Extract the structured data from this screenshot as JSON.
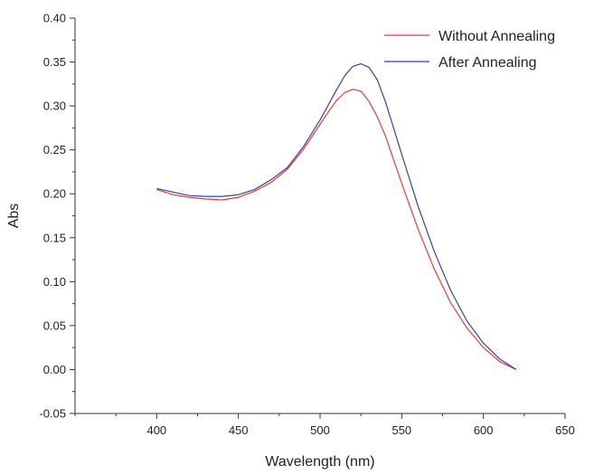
{
  "chart_data": {
    "type": "line",
    "xlabel": "Wavelength (nm)",
    "ylabel": "Abs",
    "xlim": [
      350,
      650
    ],
    "ylim": [
      -0.05,
      0.4
    ],
    "x_ticks": [
      400,
      450,
      500,
      550,
      600,
      650
    ],
    "y_ticks": [
      -0.05,
      0.0,
      0.05,
      0.1,
      0.15,
      0.2,
      0.25,
      0.3,
      0.35,
      0.4
    ],
    "x_tick_labels": [
      "400",
      "450",
      "500",
      "550",
      "600",
      "650"
    ],
    "y_tick_labels": [
      "-0.05",
      "0.00",
      "0.05",
      "0.10",
      "0.15",
      "0.20",
      "0.25",
      "0.30",
      "0.35",
      "0.40"
    ],
    "grid": false,
    "legend": "top-right",
    "series": [
      {
        "name": "Without Annealing",
        "color": "#e8393a",
        "x": [
          400,
          410,
          420,
          430,
          440,
          450,
          460,
          470,
          480,
          490,
          500,
          505,
          510,
          515,
          520,
          525,
          530,
          535,
          540,
          550,
          560,
          570,
          580,
          590,
          600,
          610,
          620
        ],
        "y": [
          0.205,
          0.199,
          0.196,
          0.194,
          0.193,
          0.196,
          0.203,
          0.213,
          0.228,
          0.251,
          0.279,
          0.293,
          0.306,
          0.315,
          0.319,
          0.317,
          0.305,
          0.288,
          0.266,
          0.212,
          0.16,
          0.114,
          0.076,
          0.047,
          0.025,
          0.009,
          0.0
        ]
      },
      {
        "name": "After Annealing",
        "color": "#3a3ea8",
        "x": [
          400,
          410,
          420,
          430,
          440,
          450,
          460,
          470,
          480,
          490,
          500,
          510,
          515,
          520,
          525,
          530,
          535,
          540,
          550,
          560,
          570,
          580,
          590,
          600,
          610,
          620
        ],
        "y": [
          0.206,
          0.202,
          0.198,
          0.197,
          0.197,
          0.199,
          0.205,
          0.216,
          0.23,
          0.254,
          0.284,
          0.318,
          0.334,
          0.345,
          0.348,
          0.344,
          0.33,
          0.305,
          0.245,
          0.186,
          0.134,
          0.09,
          0.055,
          0.03,
          0.012,
          0.0
        ]
      }
    ]
  }
}
